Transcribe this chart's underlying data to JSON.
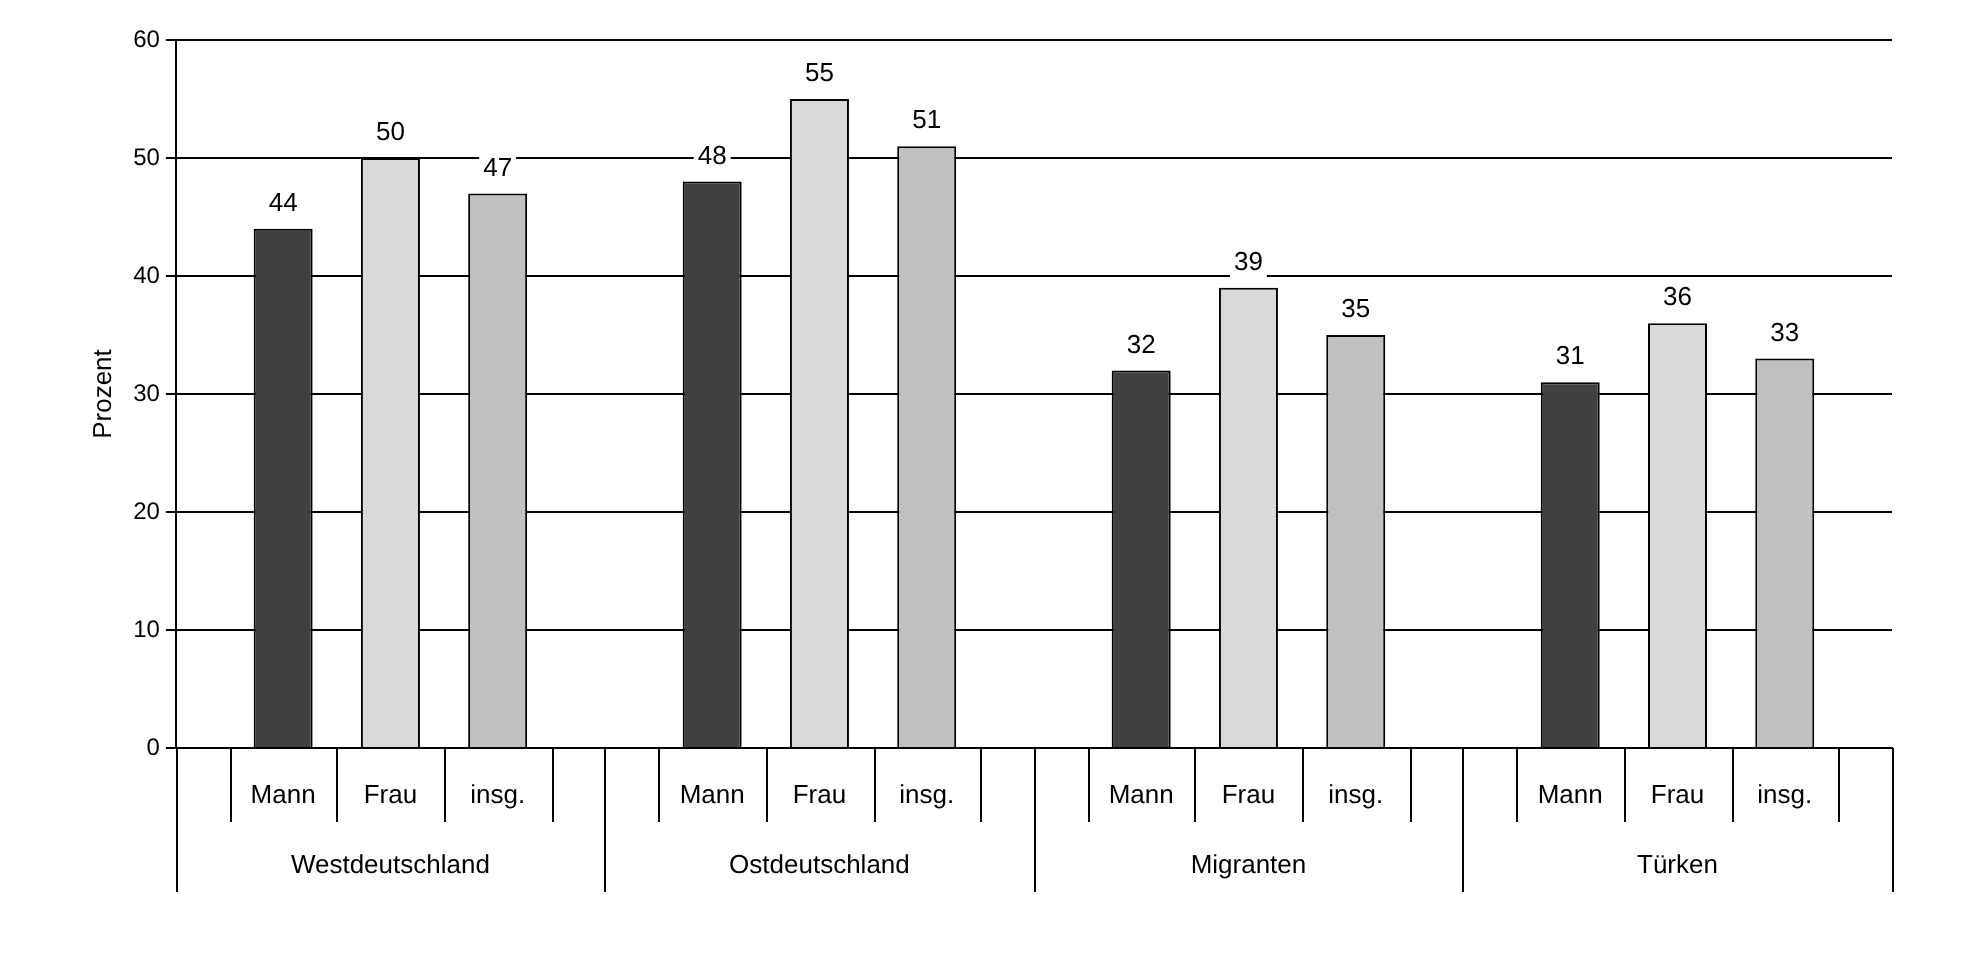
{
  "chart_data": {
    "type": "bar",
    "ylabel": "Prozent",
    "categories": [
      "Westdeutschland",
      "Ostdeutschland",
      "Migranten",
      "Türken"
    ],
    "series": [
      {
        "name": "Mann",
        "color": "#404040",
        "values": [
          44,
          48,
          32,
          31
        ]
      },
      {
        "name": "Frau",
        "color": "#d9d9d9",
        "values": [
          50,
          55,
          39,
          36
        ]
      },
      {
        "name": "insg.",
        "color": "#c0c0c0",
        "values": [
          47,
          51,
          35,
          33
        ]
      }
    ],
    "ylim": [
      0,
      60
    ],
    "yticks": [
      0,
      10,
      20,
      30,
      40,
      50,
      60
    ],
    "grid": "y",
    "legend": false,
    "data_labels": true
  }
}
